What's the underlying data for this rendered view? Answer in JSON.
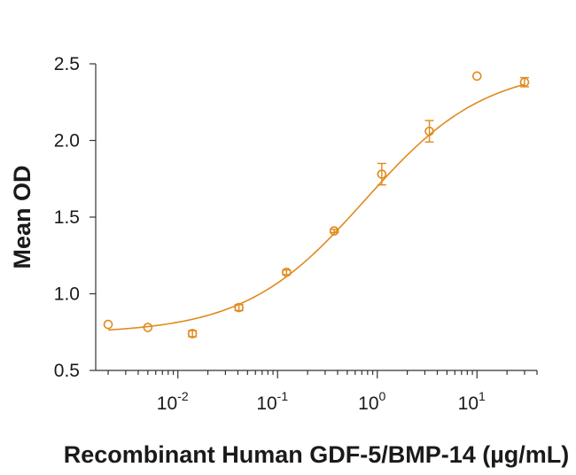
{
  "chart_data": {
    "type": "scatter",
    "xlabel": "Recombinant Human GDF-5/BMP-14 (µg/mL)",
    "ylabel": "Mean OD",
    "x_scale": "log",
    "xlim": [
      0.0015,
      40
    ],
    "ylim": [
      0.5,
      2.5
    ],
    "grid": false,
    "y_ticks": [
      "0.5",
      "1.0",
      "1.5",
      "2.0",
      "2.5"
    ],
    "y_tick_values": [
      0.5,
      1.0,
      1.5,
      2.0,
      2.5
    ],
    "x_ticks": [
      {
        "value": 0.01,
        "base": "10",
        "exp": "-2"
      },
      {
        "value": 0.1,
        "base": "10",
        "exp": "-1"
      },
      {
        "value": 1,
        "base": "10",
        "exp": "0"
      },
      {
        "value": 10,
        "base": "10",
        "exp": "1"
      }
    ],
    "color": "#e08a1e",
    "series": [
      {
        "points": [
          {
            "x": 0.002,
            "y": 0.8,
            "err": 0.0
          },
          {
            "x": 0.005,
            "y": 0.78,
            "err": 0.0
          },
          {
            "x": 0.014,
            "y": 0.74,
            "err": 0.02
          },
          {
            "x": 0.041,
            "y": 0.91,
            "err": 0.02
          },
          {
            "x": 0.123,
            "y": 1.14,
            "err": 0.015
          },
          {
            "x": 0.37,
            "y": 1.41,
            "err": 0.01
          },
          {
            "x": 1.11,
            "y": 1.78,
            "err": 0.07
          },
          {
            "x": 3.33,
            "y": 2.06,
            "err": 0.07
          },
          {
            "x": 10,
            "y": 2.42,
            "err": 0.0
          },
          {
            "x": 30,
            "y": 2.38,
            "err": 0.03
          }
        ],
        "fit": {
          "bottom": 0.74,
          "top": 2.48,
          "ec50": 0.75,
          "hill": 0.72
        }
      }
    ]
  }
}
